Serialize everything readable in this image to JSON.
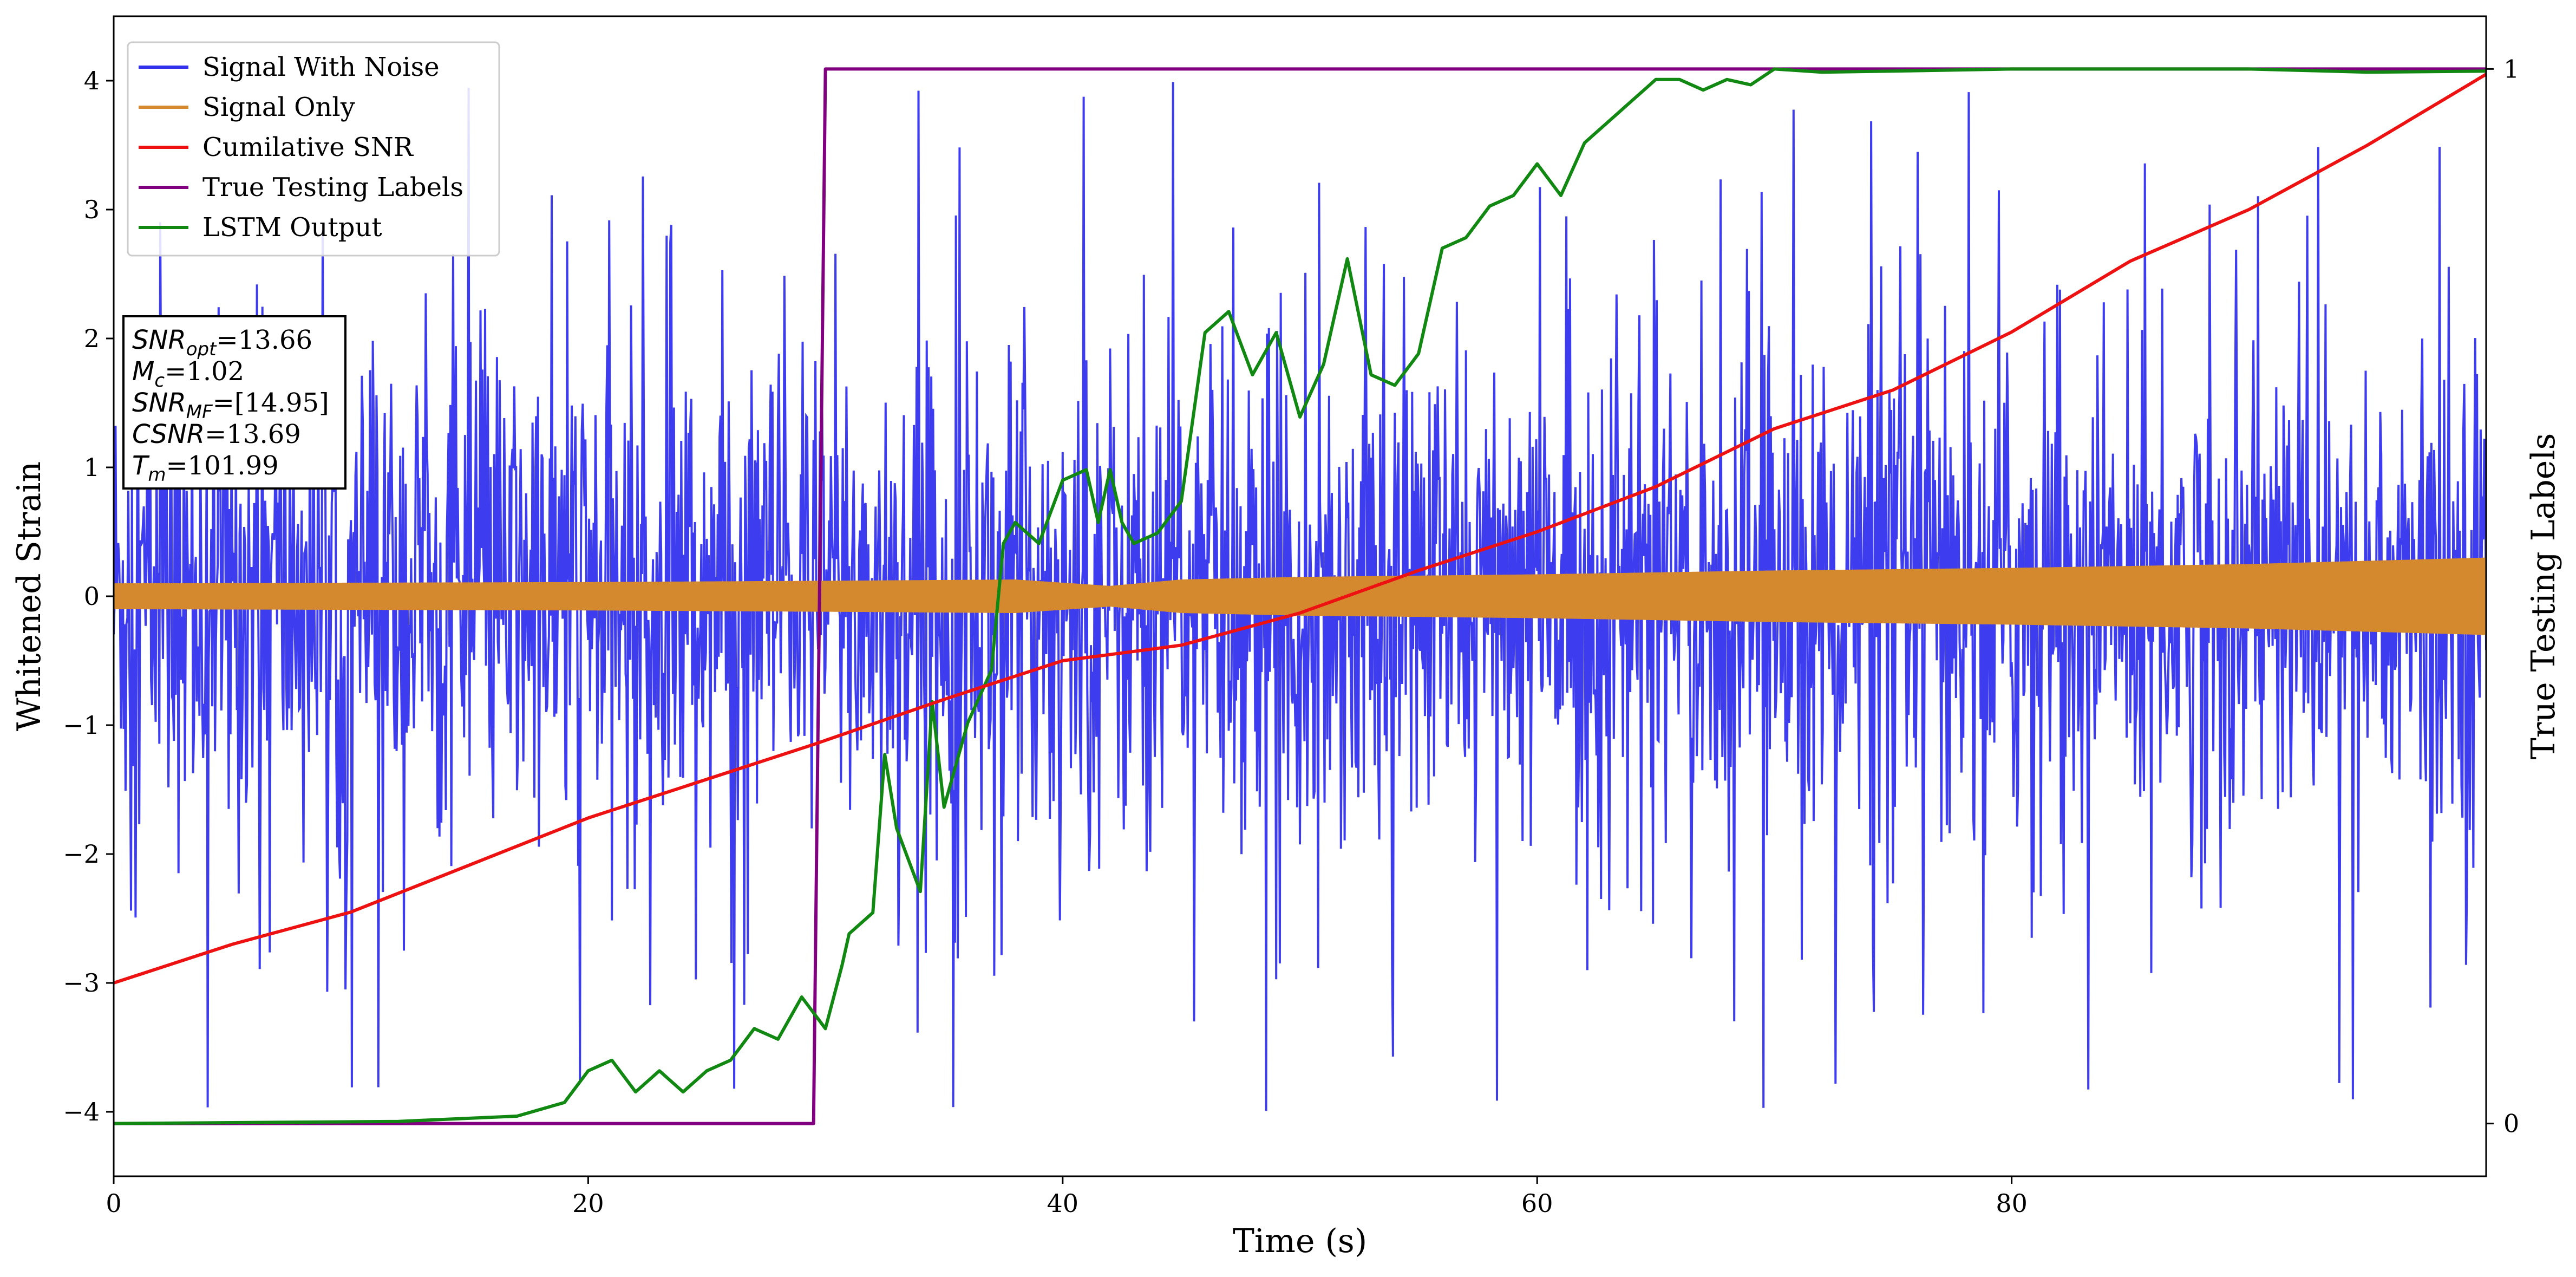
{
  "chart_data": {
    "type": "line",
    "title": "",
    "xlabel": "Time (s)",
    "ylabel": "Whitened Strain",
    "y2label": "True Testing Labels",
    "xlim": [
      0,
      100
    ],
    "ylim": [
      -4.5,
      4.5
    ],
    "y2lim": [
      -0.05,
      1.05
    ],
    "x_ticks": [
      0,
      20,
      40,
      60,
      80
    ],
    "x_tick_labels": [
      "0",
      "20",
      "40",
      "60",
      "80"
    ],
    "y_ticks": [
      -4,
      -3,
      -2,
      -1,
      0,
      1,
      2,
      3,
      4
    ],
    "y_tick_labels": [
      "−4",
      "−3",
      "−2",
      "−1",
      "0",
      "1",
      "2",
      "3",
      "4"
    ],
    "y2_ticks": [
      0,
      1
    ],
    "y2_tick_labels": [
      "0",
      "1"
    ],
    "grid": false,
    "legend_position": "top-left",
    "series": [
      {
        "name": "Signal With Noise",
        "color": "#3333ee",
        "axis": "left",
        "envelope": {
          "x": [
            0,
            100
          ],
          "typical_amplitude": [
            1.0,
            1.0
          ],
          "peak_amplitude": [
            4.0,
            4.0
          ]
        }
      },
      {
        "name": "Signal Only",
        "color": "#d4892f",
        "axis": "left",
        "envelope": {
          "x": [
            0,
            20,
            30,
            38,
            42,
            45,
            50,
            60,
            70,
            80,
            90,
            100
          ],
          "amplitude": [
            0.1,
            0.11,
            0.12,
            0.13,
            0.08,
            0.13,
            0.15,
            0.17,
            0.2,
            0.22,
            0.25,
            0.3
          ]
        }
      },
      {
        "name": "Cumilative SNR",
        "color": "#ee1111",
        "axis": "left",
        "x": [
          0,
          5,
          10,
          20,
          29.5,
          35,
          40,
          45,
          50,
          55,
          60,
          65,
          70,
          75,
          80,
          85,
          90,
          95,
          100
        ],
        "y": [
          -3.0,
          -2.7,
          -2.45,
          -1.72,
          -1.15,
          -0.8,
          -0.5,
          -0.38,
          -0.13,
          0.2,
          0.5,
          0.85,
          1.3,
          1.6,
          2.05,
          2.6,
          3.0,
          3.5,
          4.05
        ]
      },
      {
        "name": "True Testing Labels",
        "color": "#800080",
        "axis": "right",
        "x": [
          0,
          29.5,
          30,
          100
        ],
        "y": [
          0,
          0,
          1,
          1
        ]
      },
      {
        "name": "LSTM Output",
        "color": "#118811",
        "axis": "right",
        "x": [
          0,
          12,
          17,
          19,
          20,
          21,
          22,
          23,
          24,
          25,
          26,
          27,
          28,
          29,
          30,
          30.7,
          31,
          32,
          32.5,
          33,
          34,
          34.5,
          35,
          36,
          37,
          37.5,
          38,
          39,
          40,
          41,
          41.5,
          42,
          42.5,
          43,
          44,
          45,
          46,
          47,
          48,
          49,
          50,
          51,
          52,
          53,
          54,
          55,
          56,
          57,
          58,
          59,
          60,
          61,
          62,
          63,
          64,
          65,
          66,
          67,
          68,
          69,
          70,
          72,
          75,
          80,
          85,
          90,
          95,
          100
        ],
        "y": [
          0,
          0.002,
          0.007,
          0.02,
          0.05,
          0.06,
          0.03,
          0.05,
          0.03,
          0.05,
          0.06,
          0.09,
          0.08,
          0.12,
          0.09,
          0.15,
          0.18,
          0.2,
          0.35,
          0.28,
          0.22,
          0.4,
          0.3,
          0.38,
          0.43,
          0.55,
          0.57,
          0.55,
          0.61,
          0.62,
          0.57,
          0.62,
          0.57,
          0.55,
          0.56,
          0.59,
          0.75,
          0.77,
          0.71,
          0.75,
          0.67,
          0.72,
          0.82,
          0.71,
          0.7,
          0.73,
          0.83,
          0.84,
          0.87,
          0.88,
          0.91,
          0.88,
          0.93,
          0.95,
          0.97,
          0.99,
          0.99,
          0.98,
          0.99,
          0.985,
          1.0,
          0.997,
          0.998,
          1.0,
          1.0,
          1.0,
          0.997,
          0.998
        ]
      }
    ],
    "annotation": {
      "lines": [
        {
          "main": "SNR",
          "sub": "opt",
          "value": "=13.66"
        },
        {
          "main": "M",
          "sub": "c",
          "value": "=1.02"
        },
        {
          "main": "SNR",
          "sub": "MF",
          "value": "=[14.95]"
        },
        {
          "main": "CSNR",
          "sub": "",
          "value": "=13.69"
        },
        {
          "main": "T",
          "sub": "m",
          "value": "=101.99"
        }
      ]
    }
  }
}
